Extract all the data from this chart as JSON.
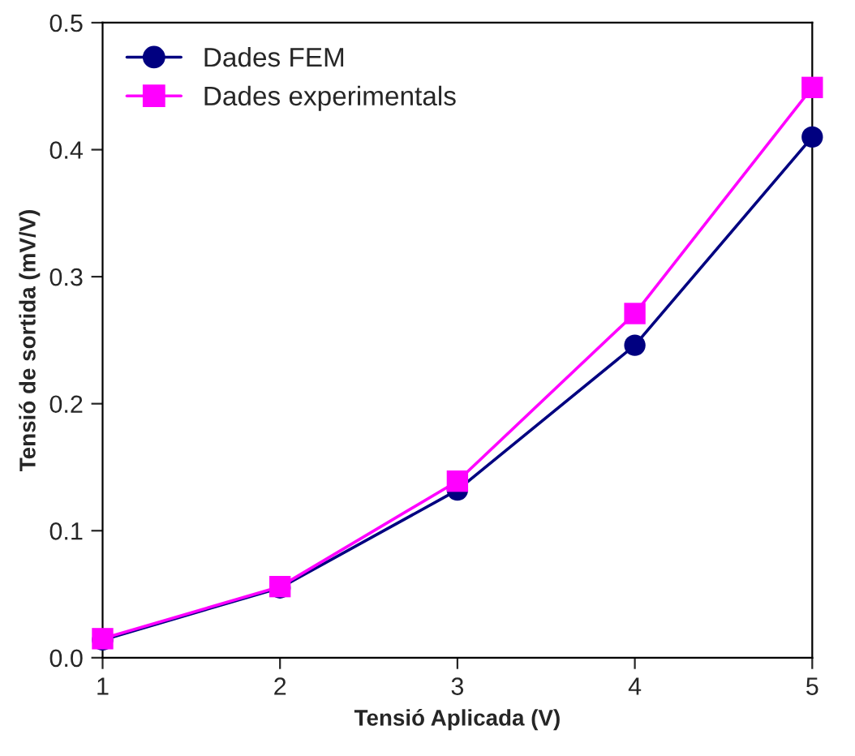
{
  "chart_data": {
    "type": "line",
    "xlabel": "Tensió Aplicada (V)",
    "ylabel": "Tensió de sortida (mV/V)",
    "x": [
      1,
      2,
      3,
      4,
      5
    ],
    "series": [
      {
        "name": "Dades FEM",
        "color": "#000080",
        "marker": "circle",
        "values": [
          0.014,
          0.055,
          0.132,
          0.246,
          0.41
        ]
      },
      {
        "name": "Dades experimentals",
        "color": "#ff00ff",
        "marker": "square",
        "values": [
          0.015,
          0.056,
          0.139,
          0.271,
          0.449
        ]
      }
    ],
    "xlim": [
      1,
      5
    ],
    "xticks": [
      1,
      2,
      3,
      4,
      5
    ],
    "ylim": [
      0,
      0.5
    ],
    "yticks": [
      {
        "value": 0,
        "label": "0.0"
      },
      0.1,
      0.2,
      0.3,
      0.4,
      0.5
    ],
    "grid": false,
    "legend": "top left"
  }
}
